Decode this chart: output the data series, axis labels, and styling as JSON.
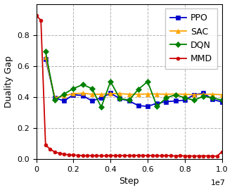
{
  "title": "",
  "xlabel": "Step",
  "ylabel": "Duality Gap",
  "xlim": [
    0,
    10000000.0
  ],
  "ylim": [
    0,
    1.0
  ],
  "legend_labels": [
    "PPO",
    "SAC",
    "DQN",
    "MMD"
  ],
  "legend_colors": [
    "#0000cc",
    "#ffa500",
    "#008000",
    "#cc0000"
  ],
  "legend_markers": [
    "s",
    "^",
    "D",
    "o"
  ],
  "grid_color": "#aaaaaa",
  "grid_linestyle": "--",
  "ppo": {
    "x": [
      500000,
      1000000,
      1500000,
      2000000,
      2500000,
      3000000,
      3500000,
      4000000,
      4500000,
      5000000,
      5500000,
      6000000,
      6500000,
      7000000,
      7500000,
      8000000,
      8500000,
      9000000,
      9500000,
      10000000
    ],
    "y": [
      0.645,
      0.395,
      0.375,
      0.415,
      0.41,
      0.375,
      0.395,
      0.425,
      0.39,
      0.375,
      0.345,
      0.34,
      0.36,
      0.37,
      0.375,
      0.38,
      0.415,
      0.425,
      0.385,
      0.368
    ]
  },
  "sac": {
    "x": [
      500000,
      1000000,
      1500000,
      2000000,
      2500000,
      3000000,
      3500000,
      4000000,
      4500000,
      5000000,
      5500000,
      6000000,
      6500000,
      7000000,
      7500000,
      8000000,
      8500000,
      9000000,
      9500000,
      10000000
    ],
    "y": [
      0.66,
      0.395,
      0.408,
      0.422,
      0.425,
      0.418,
      0.418,
      0.422,
      0.422,
      0.418,
      0.418,
      0.42,
      0.42,
      0.418,
      0.42,
      0.418,
      0.415,
      0.418,
      0.418,
      0.415
    ]
  },
  "dqn": {
    "x": [
      500000,
      1000000,
      1500000,
      2000000,
      2500000,
      3000000,
      3500000,
      4000000,
      4500000,
      5000000,
      5500000,
      6000000,
      6500000,
      7000000,
      7500000,
      8000000,
      8500000,
      9000000,
      9500000,
      10000000
    ],
    "y": [
      0.693,
      0.38,
      0.42,
      0.455,
      0.48,
      0.455,
      0.335,
      0.5,
      0.39,
      0.38,
      0.45,
      0.5,
      0.34,
      0.395,
      0.415,
      0.395,
      0.38,
      0.405,
      0.395,
      0.38
    ]
  },
  "mmd": {
    "x": [
      0,
      250000,
      500000,
      750000,
      1000000,
      1250000,
      1500000,
      1750000,
      2000000,
      2250000,
      2500000,
      2750000,
      3000000,
      3250000,
      3500000,
      3750000,
      4000000,
      4250000,
      4500000,
      4750000,
      5000000,
      5250000,
      5500000,
      5750000,
      6000000,
      6250000,
      6500000,
      6750000,
      7000000,
      7250000,
      7500000,
      7750000,
      8000000,
      8250000,
      8500000,
      8750000,
      9000000,
      9250000,
      9500000,
      9750000,
      10000000
    ],
    "y": [
      0.925,
      0.895,
      0.09,
      0.065,
      0.045,
      0.038,
      0.032,
      0.028,
      0.026,
      0.025,
      0.023,
      0.022,
      0.023,
      0.022,
      0.022,
      0.022,
      0.024,
      0.023,
      0.023,
      0.023,
      0.024,
      0.023,
      0.025,
      0.024,
      0.023,
      0.023,
      0.022,
      0.022,
      0.024,
      0.022,
      0.021,
      0.022,
      0.021,
      0.021,
      0.02,
      0.021,
      0.021,
      0.021,
      0.02,
      0.02,
      0.048
    ]
  }
}
